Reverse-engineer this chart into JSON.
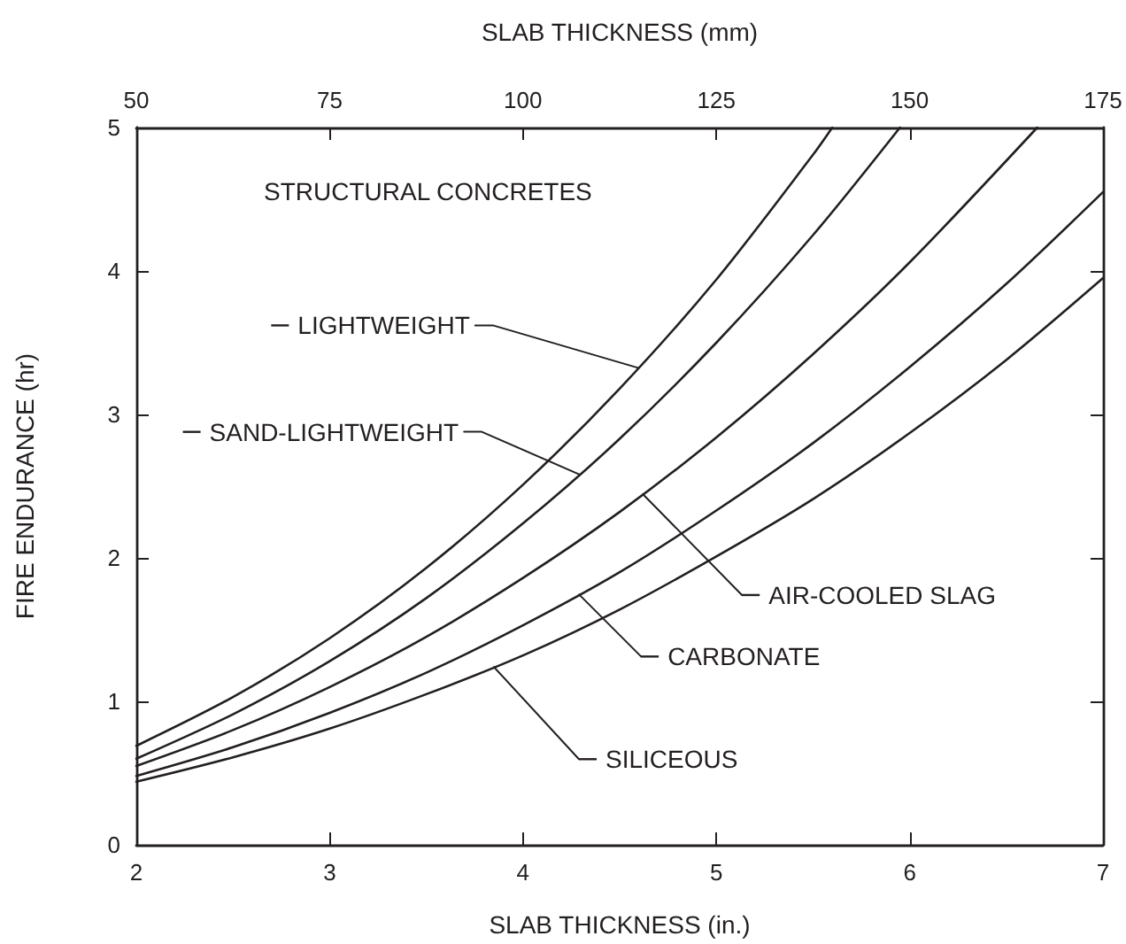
{
  "chart_data": {
    "type": "line",
    "xlabel": "SLAB THICKNESS (in.)",
    "x2label": "SLAB THICKNESS (mm)",
    "ylabel": "FIRE ENDURANCE (hr)",
    "annotations": [
      "STRUCTURAL CONCRETES"
    ],
    "legend": "center",
    "xlim": [
      2,
      7
    ],
    "xticks": [
      2,
      3,
      4,
      5,
      6,
      7
    ],
    "x2lim": [
      50,
      175
    ],
    "x2ticks": [
      50,
      75,
      100,
      125,
      150,
      175
    ],
    "ylim": [
      0,
      5
    ],
    "yticks": [
      0,
      1,
      2,
      3,
      4,
      5
    ],
    "series": [
      {
        "name": "LIGHTWEIGHT",
        "color": "#231f20",
        "x": [
          2,
          2.5,
          3,
          3.5,
          4,
          4.5,
          5,
          5.5,
          5.6
        ],
        "values": [
          0.69,
          1.03,
          1.44,
          1.93,
          2.51,
          3.18,
          3.94,
          4.81,
          5.0
        ]
      },
      {
        "name": "SAND-LIGHTWEIGHT",
        "color": "#231f20",
        "x": [
          2,
          2.5,
          3,
          3.5,
          4,
          4.5,
          5,
          5.5,
          5.95
        ],
        "values": [
          0.6,
          0.91,
          1.28,
          1.72,
          2.24,
          2.83,
          3.5,
          4.25,
          5.0
        ]
      },
      {
        "name": "AIR-COOLED SLAG",
        "color": "#231f20",
        "x": [
          2,
          2.5,
          3,
          3.5,
          4,
          4.5,
          5,
          5.5,
          6,
          6.66
        ],
        "values": [
          0.55,
          0.8,
          1.1,
          1.45,
          1.86,
          2.32,
          2.84,
          3.42,
          4.06,
          5.0
        ]
      },
      {
        "name": "CARBONATE",
        "color": "#231f20",
        "x": [
          2,
          2.5,
          3,
          3.5,
          4,
          4.5,
          5,
          5.5,
          6,
          6.5,
          7
        ],
        "values": [
          0.48,
          0.68,
          0.92,
          1.2,
          1.53,
          1.9,
          2.33,
          2.8,
          3.33,
          3.91,
          4.55
        ]
      },
      {
        "name": "SILICEOUS",
        "color": "#231f20",
        "x": [
          2,
          2.5,
          3,
          3.5,
          4,
          4.5,
          5,
          5.5,
          6,
          6.5,
          7
        ],
        "values": [
          0.44,
          0.61,
          0.81,
          1.05,
          1.32,
          1.64,
          2.01,
          2.41,
          2.87,
          3.38,
          3.95
        ]
      }
    ]
  }
}
